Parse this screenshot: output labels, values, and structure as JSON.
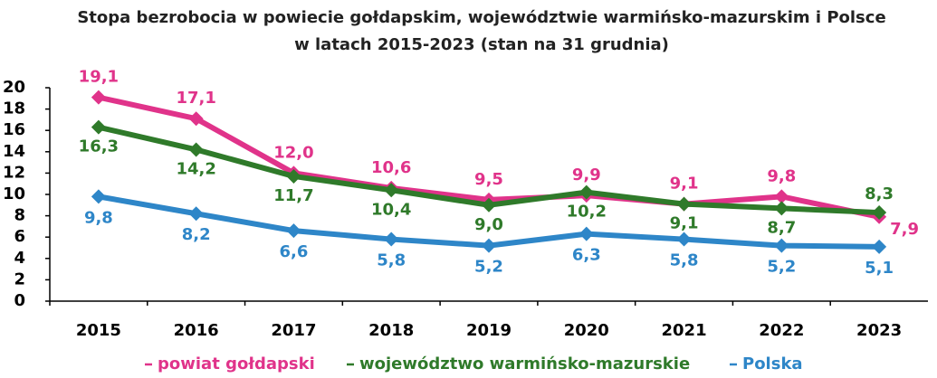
{
  "chart_data": {
    "type": "line",
    "title": [
      "Stopa bezrobocia w powiecie gołdapskim, województwie warmińsko-mazurskim i Polsce",
      "w latach 2015-2023 (stan na 31 grudnia)"
    ],
    "categories": [
      "2015",
      "2016",
      "2017",
      "2018",
      "2019",
      "2020",
      "2021",
      "2022",
      "2023"
    ],
    "series": [
      {
        "name": "powiat gołdapski",
        "color": "#e0338a",
        "values": [
          19.1,
          17.1,
          12.0,
          10.6,
          9.5,
          9.9,
          9.1,
          9.8,
          7.9
        ],
        "value_labels": [
          "19,1",
          "17,1",
          "12,0",
          "10,6",
          "9,5",
          "9,9",
          "9,1",
          "9,8",
          "7,9"
        ]
      },
      {
        "name": "województwo warmińsko-mazurskie",
        "color": "#2f7a2a",
        "values": [
          16.3,
          14.2,
          11.7,
          10.4,
          9.0,
          10.2,
          9.1,
          8.7,
          8.3
        ],
        "value_labels": [
          "16,3",
          "14,2",
          "11,7",
          "10,4",
          "9,0",
          "10,2",
          "9,1",
          "8,7",
          "8,3"
        ]
      },
      {
        "name": "Polska",
        "color": "#2e86c8",
        "values": [
          9.8,
          8.2,
          6.6,
          5.8,
          5.2,
          6.3,
          5.8,
          5.2,
          5.1
        ],
        "value_labels": [
          "9,8",
          "8,2",
          "6,6",
          "5,8",
          "5,2",
          "6,3",
          "5,8",
          "5,2",
          "5,1"
        ]
      }
    ],
    "ylim": [
      0,
      20
    ],
    "yticks": [
      0,
      2,
      4,
      6,
      8,
      10,
      12,
      14,
      16,
      18,
      20
    ],
    "grid": false
  }
}
